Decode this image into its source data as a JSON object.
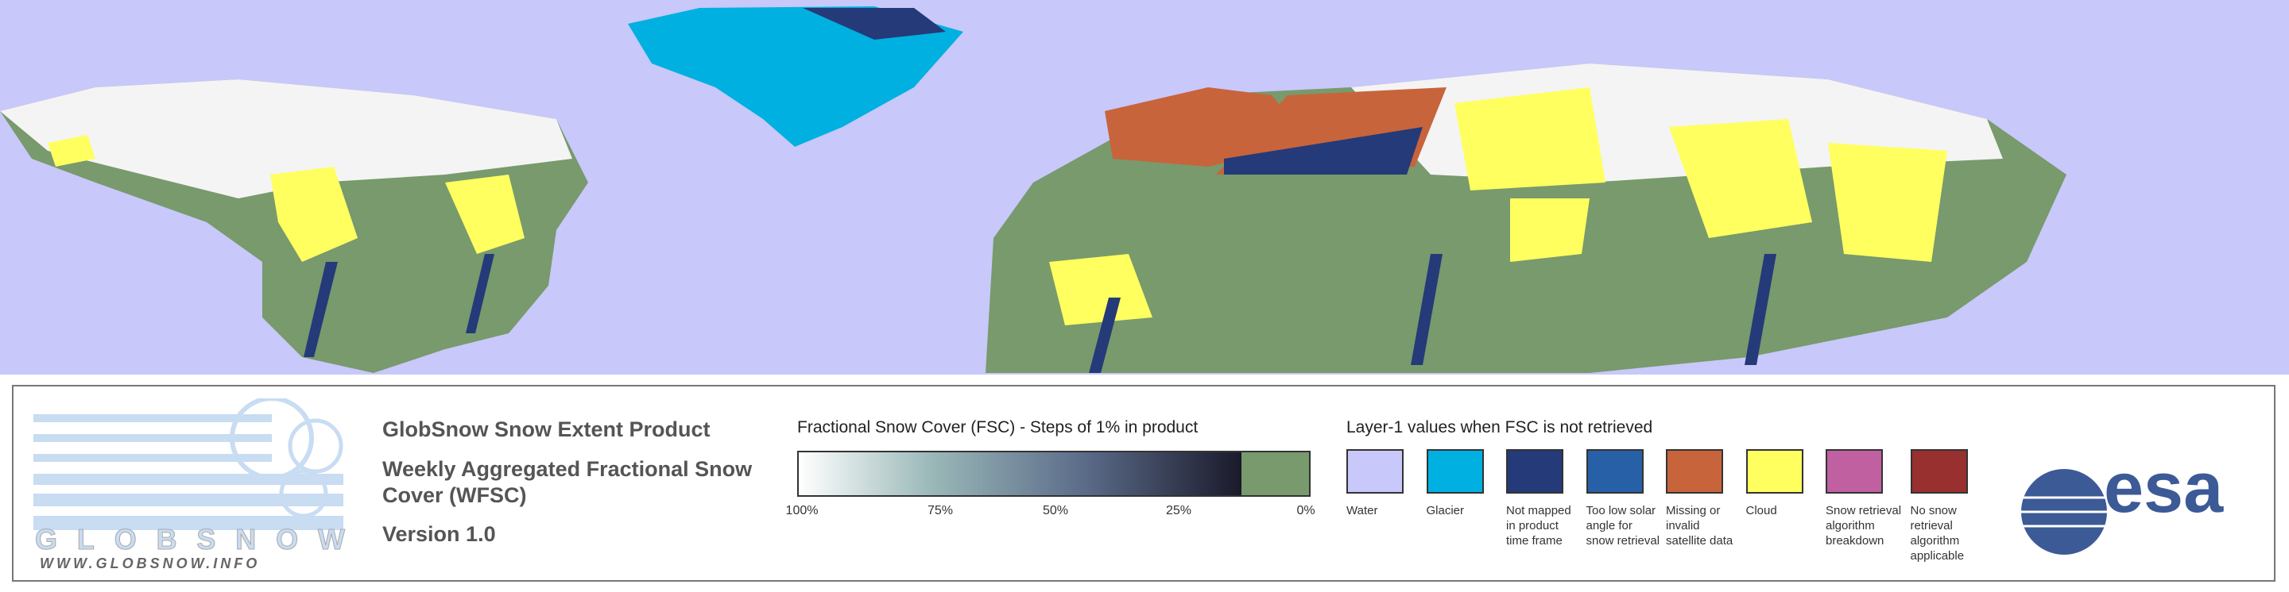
{
  "logo": {
    "name": "GLOBSNOW",
    "url": "WWW.GLOBSNOW.INFO"
  },
  "product": {
    "title": "GlobSnow Snow Extent Product",
    "subtitle": "Weekly Aggregated Fractional Snow Cover (WFSC)",
    "version": "Version 1.0"
  },
  "fsc_scale": {
    "title": "Fractional Snow Cover (FSC) - Steps of 1% in product",
    "ticks": [
      "100%",
      "75%",
      "50%",
      "25%",
      "0%"
    ]
  },
  "layer1": {
    "title": "Layer-1 values when FSC is not retrieved",
    "items": [
      {
        "label": "Water",
        "color": "#c8c8fa"
      },
      {
        "label": "Glacier",
        "color": "#00b0e0"
      },
      {
        "label": "Not mapped in product time frame",
        "color": "#253a78"
      },
      {
        "label": "Too low solar angle for snow retrieval",
        "color": "#2860a8"
      },
      {
        "label": "Missing or invalid satellite data",
        "color": "#c8643c"
      },
      {
        "label": "Cloud",
        "color": "#ffff60"
      },
      {
        "label": "Snow retrieval algorithm breakdown",
        "color": "#c060a0"
      },
      {
        "label": "No snow retrieval algorithm applicable",
        "color": "#983030"
      }
    ]
  },
  "agency": "esa"
}
